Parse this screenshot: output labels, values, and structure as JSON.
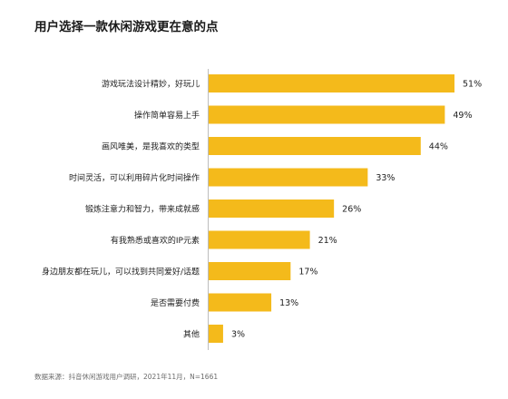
{
  "title": "用户选择一款休闲游戏更在意的点",
  "source": "数据来源：抖音休闲游戏用户调研，2021年11月，N=1661",
  "colors": {
    "bar": "#F4BA1B",
    "axis": "#bdbdbd",
    "label": "#222222"
  },
  "chart_data": {
    "type": "bar",
    "orientation": "horizontal",
    "categories": [
      "游戏玩法设计精妙，好玩儿",
      "操作简单容易上手",
      "画风唯美，是我喜欢的类型",
      "时间灵活，可以利用碎片化时间操作",
      "锻炼注意力和智力，带来成就感",
      "有我熟悉或喜欢的IP元素",
      "身边朋友都在玩儿，可以找到共同爱好/话题",
      "是否需要付费",
      "其他"
    ],
    "values": [
      51,
      49,
      44,
      33,
      26,
      21,
      17,
      13,
      3
    ],
    "value_labels": [
      "51%",
      "49%",
      "44%",
      "33%",
      "26%",
      "21%",
      "17%",
      "13%",
      "3%"
    ],
    "xlim": [
      0,
      51
    ],
    "grid": false
  }
}
